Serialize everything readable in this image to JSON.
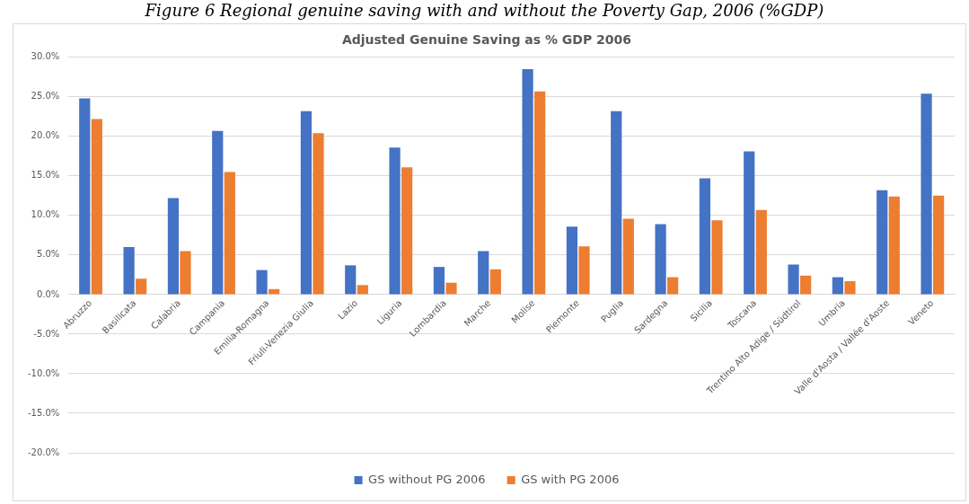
{
  "chart_data": {
    "type": "bar",
    "title": "Adjusted Genuine Saving as % GDP 2006",
    "annotations": [
      "Figure 6 Regional genuine saving with and without the Poverty Gap, 2006 (%GDP)"
    ],
    "categories": [
      "Abruzzo",
      "Basilicata",
      "Calabria",
      "Campania",
      "Emilia-Romagna",
      "Friuli-Venezia Giulia",
      "Lazio",
      "Liguria",
      "Lombardia",
      "Marche",
      "Molise",
      "Piemonte",
      "Puglia",
      "Sardegna",
      "Sicilia",
      "Toscana",
      "Trentino Alto Adige / Südtirol",
      "Umbria",
      "Valle d'Aosta / Vallée d'Aoste",
      "Veneto"
    ],
    "series": [
      {
        "name": "GS without PG 2006",
        "color": "#4472c4",
        "values": [
          24.8,
          6.0,
          12.2,
          20.7,
          3.1,
          23.2,
          3.7,
          18.6,
          3.5,
          5.5,
          28.5,
          8.6,
          23.2,
          8.9,
          14.7,
          18.1,
          3.8,
          2.2,
          13.2,
          25.4
        ]
      },
      {
        "name": "GS with PG 2006",
        "color": "#ed7d31",
        "values": [
          22.2,
          2.0,
          5.5,
          15.5,
          0.7,
          20.4,
          1.2,
          16.1,
          1.5,
          3.2,
          25.7,
          6.1,
          9.6,
          2.2,
          9.4,
          10.7,
          2.4,
          1.7,
          12.4,
          12.5
        ]
      }
    ],
    "ylim": [
      -20,
      30
    ],
    "yticks": [
      {
        "value": -20,
        "label": "-20.0%"
      },
      {
        "value": -15,
        "label": "-15.0%"
      },
      {
        "value": -10,
        "label": "-10.0%"
      },
      {
        "value": -5,
        "label": "-5.0%"
      },
      {
        "value": 0,
        "label": "0.0%"
      },
      {
        "value": 5,
        "label": "5.0%"
      },
      {
        "value": 10,
        "label": "10.0%"
      },
      {
        "value": 15,
        "label": "15.0%"
      },
      {
        "value": 20,
        "label": "20.0%"
      },
      {
        "value": 25,
        "label": "25.0%"
      },
      {
        "value": 30,
        "label": "30.0%"
      }
    ],
    "grid": "y",
    "legend": "bottom"
  }
}
